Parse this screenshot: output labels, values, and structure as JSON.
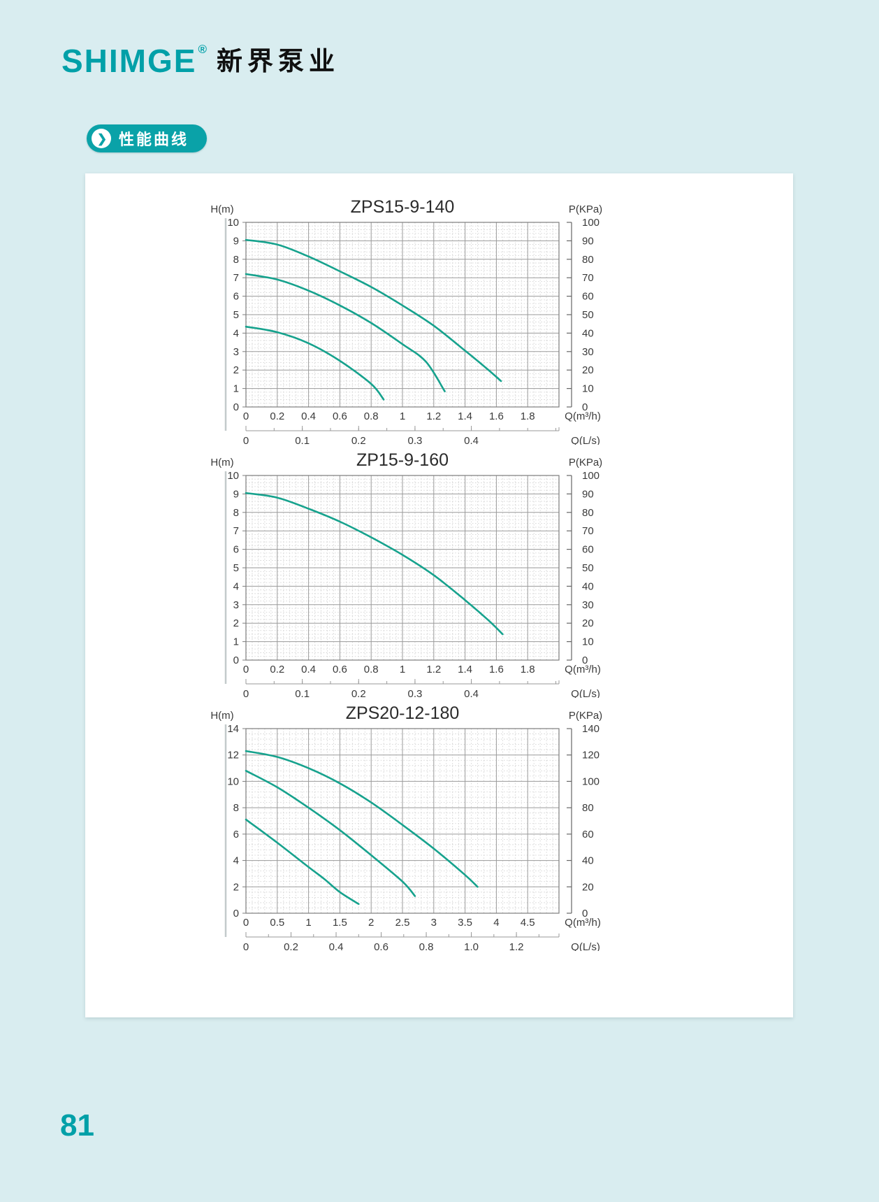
{
  "page": {
    "number": "81"
  },
  "brand": {
    "logo": "SHIMGE",
    "registered": "®",
    "logo_cn": "新界泵业"
  },
  "section": {
    "badge_label": "性能曲线"
  },
  "colors": {
    "brand_teal": "#00a0a8",
    "badge_teal": "#0aa2a8",
    "curve_teal": "#16a28d",
    "page_background": "#d9edf0"
  },
  "chart_data": [
    {
      "type": "line",
      "title": "ZPS15-9-140",
      "ylabel": "H(m)",
      "y2label": "P(KPa)",
      "xlabel": "Q(m³/h)",
      "x2label": "Q(L/s)",
      "xlim": [
        0,
        2
      ],
      "ylim": [
        0,
        10
      ],
      "y2lim": [
        0,
        100
      ],
      "xstep": 0.2,
      "ystep": 1,
      "xticks": [
        [
          "0",
          0
        ],
        [
          "0.2",
          0.2
        ],
        [
          "0.4",
          0.4
        ],
        [
          "0.6",
          0.6
        ],
        [
          "0.8",
          0.8
        ],
        [
          "1",
          1
        ],
        [
          "1.2",
          1.2
        ],
        [
          "1.4",
          1.4
        ],
        [
          "1.6",
          1.6
        ],
        [
          "1.8",
          1.8
        ]
      ],
      "yticks": [
        [
          "0",
          0
        ],
        [
          "1",
          1
        ],
        [
          "2",
          2
        ],
        [
          "3",
          3
        ],
        [
          "4",
          4
        ],
        [
          "5",
          5
        ],
        [
          "6",
          6
        ],
        [
          "7",
          7
        ],
        [
          "8",
          8
        ],
        [
          "9",
          9
        ],
        [
          "10",
          10
        ]
      ],
      "y2ticks": [
        [
          "0",
          0
        ],
        [
          "10",
          10
        ],
        [
          "20",
          20
        ],
        [
          "30",
          30
        ],
        [
          "40",
          40
        ],
        [
          "50",
          50
        ],
        [
          "60",
          60
        ],
        [
          "70",
          70
        ],
        [
          "80",
          80
        ],
        [
          "90",
          90
        ],
        [
          "100",
          100
        ]
      ],
      "x2ticks": [
        [
          "0",
          0
        ],
        [
          "0.1",
          0.36
        ],
        [
          "0.2",
          0.72
        ],
        [
          "0.3",
          1.08
        ],
        [
          "0.4",
          1.44
        ]
      ],
      "x2minor": 0.18,
      "grid": true,
      "legend": "none",
      "series": [
        {
          "name": "curve-speed-3",
          "points": [
            [
              0,
              9.05
            ],
            [
              0.2,
              8.8
            ],
            [
              0.4,
              8.15
            ],
            [
              0.6,
              7.35
            ],
            [
              0.8,
              6.5
            ],
            [
              1.0,
              5.5
            ],
            [
              1.2,
              4.4
            ],
            [
              1.4,
              3.05
            ],
            [
              1.55,
              2.0
            ],
            [
              1.63,
              1.4
            ]
          ]
        },
        {
          "name": "curve-speed-2",
          "points": [
            [
              0,
              7.2
            ],
            [
              0.2,
              6.9
            ],
            [
              0.4,
              6.3
            ],
            [
              0.6,
              5.5
            ],
            [
              0.8,
              4.55
            ],
            [
              1.0,
              3.4
            ],
            [
              1.15,
              2.45
            ],
            [
              1.27,
              0.85
            ]
          ]
        },
        {
          "name": "curve-speed-1",
          "points": [
            [
              0,
              4.35
            ],
            [
              0.2,
              4.05
            ],
            [
              0.4,
              3.45
            ],
            [
              0.6,
              2.5
            ],
            [
              0.8,
              1.25
            ],
            [
              0.88,
              0.4
            ]
          ]
        }
      ]
    },
    {
      "type": "line",
      "title": "ZP15-9-160",
      "ylabel": "H(m)",
      "y2label": "P(KPa)",
      "xlabel": "Q(m³/h)",
      "x2label": "Q(L/s)",
      "xlim": [
        0,
        2
      ],
      "ylim": [
        0,
        10
      ],
      "y2lim": [
        0,
        100
      ],
      "xstep": 0.2,
      "ystep": 1,
      "xticks": [
        [
          "0",
          0
        ],
        [
          "0.2",
          0.2
        ],
        [
          "0.4",
          0.4
        ],
        [
          "0.6",
          0.6
        ],
        [
          "0.8",
          0.8
        ],
        [
          "1",
          1
        ],
        [
          "1.2",
          1.2
        ],
        [
          "1.4",
          1.4
        ],
        [
          "1.6",
          1.6
        ],
        [
          "1.8",
          1.8
        ]
      ],
      "yticks": [
        [
          "0",
          0
        ],
        [
          "1",
          1
        ],
        [
          "2",
          2
        ],
        [
          "3",
          3
        ],
        [
          "4",
          4
        ],
        [
          "5",
          5
        ],
        [
          "6",
          6
        ],
        [
          "7",
          7
        ],
        [
          "8",
          8
        ],
        [
          "9",
          9
        ],
        [
          "10",
          10
        ]
      ],
      "y2ticks": [
        [
          "0",
          0
        ],
        [
          "10",
          10
        ],
        [
          "20",
          20
        ],
        [
          "30",
          30
        ],
        [
          "40",
          40
        ],
        [
          "50",
          50
        ],
        [
          "60",
          60
        ],
        [
          "70",
          70
        ],
        [
          "80",
          80
        ],
        [
          "90",
          90
        ],
        [
          "100",
          100
        ]
      ],
      "x2ticks": [
        [
          "0",
          0
        ],
        [
          "0.1",
          0.36
        ],
        [
          "0.2",
          0.72
        ],
        [
          "0.3",
          1.08
        ],
        [
          "0.4",
          1.44
        ]
      ],
      "x2minor": 0.18,
      "grid": true,
      "legend": "none",
      "series": [
        {
          "name": "curve-1",
          "points": [
            [
              0,
              9.05
            ],
            [
              0.2,
              8.8
            ],
            [
              0.4,
              8.2
            ],
            [
              0.6,
              7.5
            ],
            [
              0.8,
              6.65
            ],
            [
              1.0,
              5.7
            ],
            [
              1.2,
              4.6
            ],
            [
              1.4,
              3.25
            ],
            [
              1.55,
              2.15
            ],
            [
              1.64,
              1.4
            ]
          ]
        }
      ]
    },
    {
      "type": "line",
      "title": "ZPS20-12-180",
      "ylabel": "H(m)",
      "y2label": "P(KPa)",
      "xlabel": "Q(m³/h)",
      "x2label": "Q(L/s)",
      "xlim": [
        0,
        5
      ],
      "ylim": [
        0,
        14
      ],
      "y2lim": [
        0,
        140
      ],
      "xstep": 0.5,
      "ystep": 2,
      "xticks": [
        [
          "0",
          0
        ],
        [
          "0.5",
          0.5
        ],
        [
          "1",
          1
        ],
        [
          "1.5",
          1.5
        ],
        [
          "2",
          2
        ],
        [
          "2.5",
          2.5
        ],
        [
          "3",
          3
        ],
        [
          "3.5",
          3.5
        ],
        [
          "4",
          4
        ],
        [
          "4.5",
          4.5
        ]
      ],
      "yticks": [
        [
          "0",
          0
        ],
        [
          "2",
          2
        ],
        [
          "4",
          4
        ],
        [
          "6",
          6
        ],
        [
          "8",
          8
        ],
        [
          "10",
          10
        ],
        [
          "12",
          12
        ],
        [
          "14",
          14
        ]
      ],
      "y2ticks": [
        [
          "0",
          0
        ],
        [
          "20",
          20
        ],
        [
          "40",
          40
        ],
        [
          "60",
          60
        ],
        [
          "80",
          80
        ],
        [
          "100",
          100
        ],
        [
          "120",
          120
        ],
        [
          "140",
          140
        ]
      ],
      "x2ticks": [
        [
          "0",
          0
        ],
        [
          "0.2",
          0.72
        ],
        [
          "0.4",
          1.44
        ],
        [
          "0.6",
          2.16
        ],
        [
          "0.8",
          2.88
        ],
        [
          "1.0",
          3.6
        ],
        [
          "1.2",
          4.32
        ]
      ],
      "x2minor": 0.36,
      "grid": true,
      "legend": "none",
      "series": [
        {
          "name": "curve-speed-3",
          "points": [
            [
              0,
              12.3
            ],
            [
              0.5,
              11.85
            ],
            [
              1.0,
              11.0
            ],
            [
              1.5,
              9.85
            ],
            [
              2.0,
              8.4
            ],
            [
              2.5,
              6.7
            ],
            [
              3.0,
              4.9
            ],
            [
              3.5,
              2.9
            ],
            [
              3.7,
              2.0
            ]
          ]
        },
        {
          "name": "curve-speed-2",
          "points": [
            [
              0,
              10.8
            ],
            [
              0.5,
              9.55
            ],
            [
              1.0,
              8.0
            ],
            [
              1.5,
              6.3
            ],
            [
              2.0,
              4.4
            ],
            [
              2.5,
              2.4
            ],
            [
              2.7,
              1.3
            ]
          ]
        },
        {
          "name": "curve-speed-1",
          "points": [
            [
              0,
              7.1
            ],
            [
              0.5,
              5.35
            ],
            [
              1.0,
              3.5
            ],
            [
              1.25,
              2.6
            ],
            [
              1.5,
              1.6
            ],
            [
              1.8,
              0.7
            ]
          ]
        }
      ]
    }
  ]
}
